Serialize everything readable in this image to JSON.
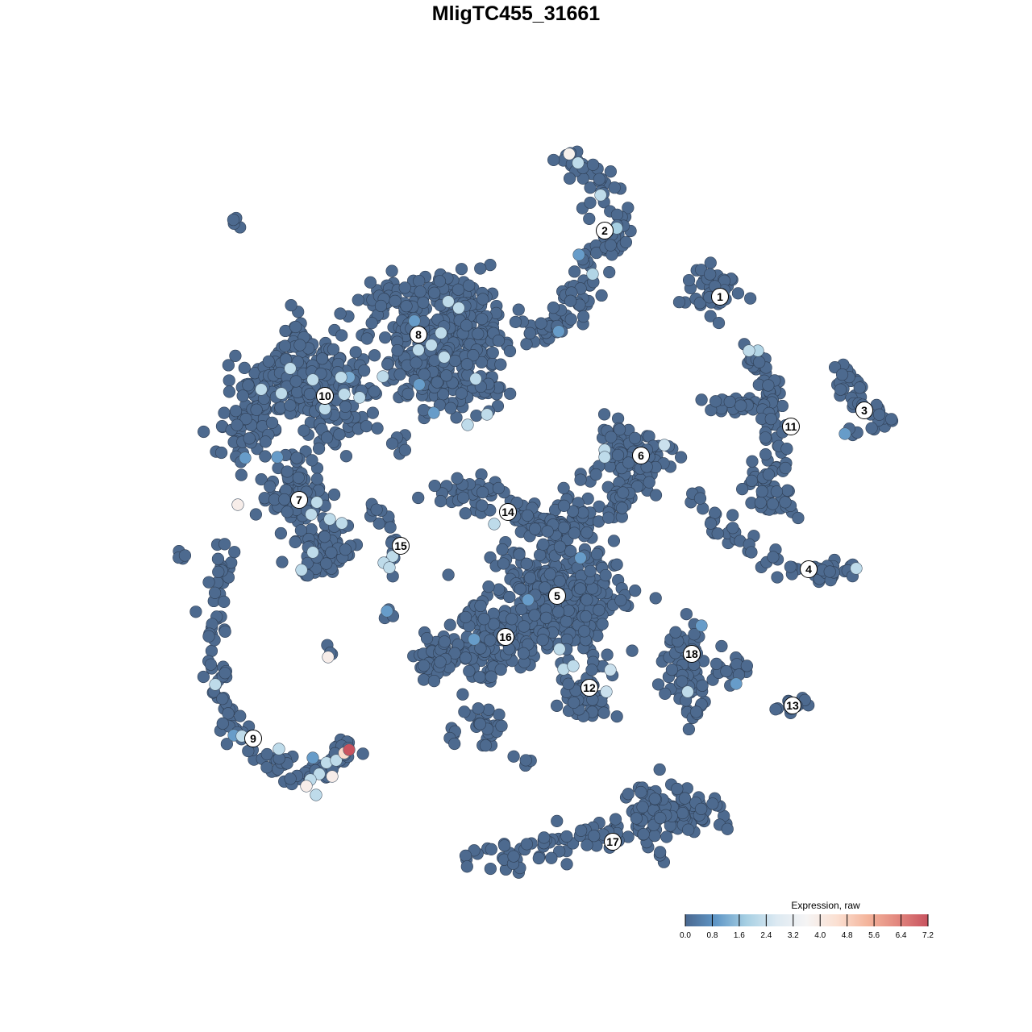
{
  "chart_data": {
    "type": "scatter",
    "title": "MligTC455_31661",
    "xlabel": "",
    "ylabel": "",
    "grid": false,
    "axes_visible": false,
    "base_color": "#4d6a8f",
    "legend": {
      "title": "Expression, raw",
      "placement": "bottom-right",
      "range": [
        0,
        7.2
      ],
      "ticks": [
        "0.0",
        "0.8",
        "1.6",
        "2.4",
        "3.2",
        "4.0",
        "4.8",
        "5.6",
        "6.4",
        "7.2"
      ],
      "colors": [
        "#4a6890",
        "#5f96c6",
        "#a6cfe3",
        "#dce9f2",
        "#f5f4f4",
        "#fbe0d2",
        "#f4b59c",
        "#e2877e",
        "#c8535f"
      ]
    },
    "clusters": [
      {
        "label": "1",
        "label_pos": [
          25.3,
          27.2
        ],
        "segments": [
          {
            "path": [
              [
                24.5,
                28
              ]
            ],
            "spread": 2.3,
            "n": 45
          }
        ]
      },
      {
        "label": "2",
        "label_pos": [
          11,
          35.4
        ],
        "segments": [
          {
            "path": [
              [
                5,
                44
              ],
              [
                10,
                42
              ],
              [
                12.5,
                38
              ],
              [
                12,
                34
              ],
              [
                9.5,
                30
              ],
              [
                7,
                26
              ],
              [
                5,
                23
              ],
              [
                2,
                22.5
              ]
            ],
            "spread": 1.7,
            "n": 120
          }
        ]
      },
      {
        "label": "3",
        "label_pos": [
          43.2,
          13.1
        ],
        "segments": [
          {
            "path": [
              [
                39,
                19
              ],
              [
                41,
                17
              ],
              [
                42.5,
                14
              ],
              [
                46,
                12.2
              ],
              [
                41,
                11
              ]
            ],
            "spread": 1.0,
            "n": 40
          }
        ]
      },
      {
        "label": "4",
        "label_pos": [
          36.3,
          -6.6
        ],
        "segments": [
          {
            "path": [
              [
                22,
                3
              ],
              [
                25,
                -1
              ],
              [
                29,
                -4.5
              ],
              [
                36,
                -7
              ],
              [
                41.5,
                -6.5
              ]
            ],
            "spread": 1.0,
            "n": 60
          }
        ]
      },
      {
        "label": "5",
        "label_pos": [
          5.1,
          -9.9
        ],
        "segments": [
          {
            "path": [
              [
                5,
                -10
              ]
            ],
            "spread": 5.5,
            "n": 380
          },
          {
            "path": [
              [
                5,
                -3
              ],
              [
                9,
                1
              ]
            ],
            "spread": 2,
            "n": 40
          }
        ]
      },
      {
        "label": "6",
        "label_pos": [
          15.5,
          7.5
        ],
        "segments": [
          {
            "path": [
              [
                14,
                7
              ]
            ],
            "spread": 3.2,
            "n": 110
          },
          {
            "path": [
              [
                14,
                3
              ],
              [
                12,
                0
              ]
            ],
            "spread": 1.3,
            "n": 25
          }
        ]
      },
      {
        "label": "7",
        "label_pos": [
          -26.9,
          2
        ],
        "segments": [
          {
            "path": [
              [
                -27,
                3
              ]
            ],
            "spread": 2.8,
            "n": 90
          },
          {
            "path": [
              [
                -24,
                -4
              ]
            ],
            "spread": 2.3,
            "n": 70
          }
        ]
      },
      {
        "label": "8",
        "label_pos": [
          -12.1,
          22.5
        ],
        "segments": [
          {
            "path": [
              [
                -19,
                26
              ],
              [
                -12,
                27.5
              ],
              [
                -5,
                26
              ],
              [
                -4,
                21
              ],
              [
                -5,
                14
              ]
            ],
            "spread": 2.6,
            "n": 220
          },
          {
            "path": [
              [
                -11,
                20
              ]
            ],
            "spread": 4,
            "n": 200
          }
        ]
      },
      {
        "label": "9",
        "label_pos": [
          -32.6,
          -27.6
        ],
        "segments": [
          {
            "path": [
              [
                -36.5,
                -4
              ],
              [
                -37,
                -12
              ],
              [
                -37,
                -20
              ],
              [
                -35.5,
                -25.5
              ],
              [
                -31,
                -30
              ],
              [
                -26,
                -32.5
              ],
              [
                -23,
                -31
              ],
              [
                -21,
                -28.5
              ]
            ],
            "spread": 1.1,
            "n": 130
          }
        ]
      },
      {
        "label": "10",
        "label_pos": [
          -23.7,
          14.9
        ],
        "segments": [
          {
            "path": [
              [
                -34,
                8
              ],
              [
                -32,
                16
              ],
              [
                -26,
                22
              ]
            ],
            "spread": 2.6,
            "n": 150
          },
          {
            "path": [
              [
                -24,
                15
              ]
            ],
            "spread": 4,
            "n": 180
          }
        ]
      },
      {
        "label": "11",
        "label_pos": [
          34.1,
          11.1
        ],
        "segments": [
          {
            "path": [
              [
                29,
                20
              ],
              [
                31,
                16
              ],
              [
                32,
                11
              ],
              [
                32,
                6
              ],
              [
                30,
                3
              ],
              [
                34.5,
                1
              ]
            ],
            "spread": 1.4,
            "n": 110
          },
          {
            "path": [
              [
                24,
                14
              ],
              [
                31,
                13
              ]
            ],
            "spread": 1.1,
            "n": 30
          }
        ]
      },
      {
        "label": "12",
        "label_pos": [
          9.1,
          -21.3
        ],
        "segments": [
          {
            "path": [
              [
                8,
                -22
              ]
            ],
            "spread": 2.3,
            "n": 55
          }
        ]
      },
      {
        "label": "13",
        "label_pos": [
          34.3,
          -23.5
        ],
        "segments": [
          {
            "path": [
              [
                32,
                -23.8
              ],
              [
                37,
                -22.2
              ]
            ],
            "spread": 0.7,
            "n": 12
          }
        ]
      },
      {
        "label": "14",
        "label_pos": [
          -1,
          0.5
        ],
        "segments": [
          {
            "path": [
              [
                -11,
                2.8
              ],
              [
                -4,
                3
              ],
              [
                1,
                0
              ],
              [
                5,
                -2
              ]
            ],
            "spread": 1.5,
            "n": 80
          }
        ]
      },
      {
        "label": "15",
        "label_pos": [
          -14.3,
          -3.7
        ],
        "segments": [
          {
            "path": [
              [
                -18,
                1.5
              ],
              [
                -15,
                -2
              ],
              [
                -16,
                -6.5
              ]
            ],
            "spread": 0.8,
            "n": 18
          }
        ]
      },
      {
        "label": "16",
        "label_pos": [
          -1.3,
          -15
        ],
        "segments": [
          {
            "path": [
              [
                -3,
                -15
              ]
            ],
            "spread": 3.5,
            "n": 140
          },
          {
            "path": [
              [
                -10,
                -17.5
              ]
            ],
            "spread": 2,
            "n": 50
          },
          {
            "path": [
              [
                -5,
                -25
              ],
              [
                -2,
                -28
              ]
            ],
            "spread": 1.5,
            "n": 25
          }
        ]
      },
      {
        "label": "17",
        "label_pos": [
          12,
          -40.4
        ],
        "segments": [
          {
            "path": [
              [
                -6,
                -42.5
              ],
              [
                1,
                -42
              ],
              [
                8,
                -40.5
              ],
              [
                14,
                -38
              ],
              [
                21,
                -36
              ],
              [
                25.5,
                -37.2
              ]
            ],
            "spread": 1.4,
            "n": 110
          },
          {
            "path": [
              [
                18,
                -37
              ]
            ],
            "spread": 3,
            "n": 80
          }
        ]
      },
      {
        "label": "18",
        "label_pos": [
          21.8,
          -17.1
        ],
        "segments": [
          {
            "path": [
              [
                21,
                -13
              ],
              [
                20,
                -19
              ],
              [
                22,
                -24
              ]
            ],
            "spread": 1.8,
            "n": 70
          },
          {
            "path": [
              [
                26.5,
                -19
              ]
            ],
            "spread": 1.5,
            "n": 20
          }
        ]
      },
      {
        "label": "",
        "label_pos": null,
        "segments": [
          {
            "path": [
              [
                -34.8,
                36.5
              ]
            ],
            "spread": 0.5,
            "n": 4
          },
          {
            "path": [
              [
                -42,
                -5
              ]
            ],
            "spread": 0.5,
            "n": 4
          },
          {
            "path": [
              [
                -23,
                -16.5
              ]
            ],
            "spread": 0.5,
            "n": 3
          },
          {
            "path": [
              [
                1,
                -31
              ]
            ],
            "spread": 0.6,
            "n": 4
          },
          {
            "path": [
              [
                -8,
                -27
              ]
            ],
            "spread": 0.8,
            "n": 5
          },
          {
            "path": [
              [
                -15,
                9
              ]
            ],
            "spread": 1,
            "n": 6
          },
          {
            "path": [
              [
                -16,
                -12
              ]
            ],
            "spread": 0.8,
            "n": 4
          }
        ]
      }
    ],
    "expressing_cells": [
      [
        6.6,
        44.9,
        3.8
      ],
      [
        7.7,
        43.8,
        2.2
      ],
      [
        10.5,
        39.8,
        2.2
      ],
      [
        12.5,
        35.7,
        1.8
      ],
      [
        7.8,
        32.4,
        1.0
      ],
      [
        9.5,
        30,
        2.0
      ],
      [
        5.3,
        22.9,
        1.0
      ],
      [
        28.9,
        20.5,
        2.2
      ],
      [
        30,
        20.5,
        2.0
      ],
      [
        40.8,
        10.2,
        1.0
      ],
      [
        11,
        8.2,
        2.2
      ],
      [
        11,
        7.3,
        2.2
      ],
      [
        18.4,
        8.8,
        2.4
      ],
      [
        42.2,
        -6.5,
        2.2
      ],
      [
        8,
        -5.2,
        1.0
      ],
      [
        1.5,
        -10.4,
        1.0
      ],
      [
        5.4,
        -16.5,
        2.2
      ],
      [
        5.9,
        -19,
        2.2
      ],
      [
        7.1,
        -18.6,
        2.2
      ],
      [
        11.7,
        -19.1,
        2.4
      ],
      [
        11.2,
        -21.8,
        2.4
      ],
      [
        23,
        -13.6,
        1.0
      ],
      [
        27.3,
        -20.8,
        1.0
      ],
      [
        21.3,
        -21.8,
        2.2
      ],
      [
        -5.2,
        -15.3,
        1.0
      ],
      [
        -2.7,
        -1,
        2.2
      ],
      [
        -15.3,
        -5,
        2.2
      ],
      [
        -16.4,
        -5.8,
        2.2
      ],
      [
        -15.7,
        -6.4,
        2.2
      ],
      [
        -16,
        -11.8,
        1.0
      ],
      [
        -8.4,
        26.6,
        2.2
      ],
      [
        -7.1,
        25.8,
        2.2
      ],
      [
        -12.6,
        24.2,
        1.0
      ],
      [
        -9.3,
        22.7,
        2.2
      ],
      [
        -10.5,
        21.2,
        2.2
      ],
      [
        -12.1,
        20.6,
        2.2
      ],
      [
        -8.9,
        19.7,
        2.2
      ],
      [
        -5,
        17,
        2.2
      ],
      [
        -12,
        16.3,
        1.0
      ],
      [
        -10.2,
        12.8,
        1.0
      ],
      [
        -6,
        11.3,
        2.2
      ],
      [
        -3.6,
        12.6,
        2.2
      ],
      [
        -28,
        18.3,
        2.2
      ],
      [
        -25.2,
        16.9,
        2.2
      ],
      [
        -21.7,
        17.2,
        2.2
      ],
      [
        -20.7,
        17.2,
        1.2
      ],
      [
        -16.5,
        17.3,
        2.2
      ],
      [
        -19.4,
        14.7,
        2.2
      ],
      [
        -21.3,
        15.1,
        2.2
      ],
      [
        -23.7,
        13.3,
        2.2
      ],
      [
        -29.1,
        15.2,
        2.2
      ],
      [
        -31.6,
        15.7,
        2.2
      ],
      [
        -33.6,
        7.2,
        1.0
      ],
      [
        -29.6,
        7.3,
        1.0
      ],
      [
        -34.5,
        1.4,
        3.9
      ],
      [
        -24.7,
        1.7,
        2.2
      ],
      [
        -25.4,
        0.2,
        2.2
      ],
      [
        -23.1,
        -0.4,
        2.2
      ],
      [
        -21.6,
        -0.9,
        2.2
      ],
      [
        -25.2,
        -4.5,
        2.2
      ],
      [
        -26.6,
        -6.7,
        2.2
      ],
      [
        -23.3,
        -17.5,
        3.9
      ],
      [
        -37.3,
        -20.9,
        2.2
      ],
      [
        -35,
        -27.2,
        1.0
      ],
      [
        -34,
        -27.3,
        2.2
      ],
      [
        -29.4,
        -28.9,
        2.2
      ],
      [
        -25.2,
        -30,
        1.0
      ],
      [
        -23.5,
        -30.6,
        2.2
      ],
      [
        -22.3,
        -30.3,
        2.2
      ],
      [
        -21.3,
        -29.4,
        4.6
      ],
      [
        -20.7,
        -29,
        7.2
      ],
      [
        -22.8,
        -32.3,
        3.9
      ],
      [
        -24.4,
        -32,
        2.2
      ],
      [
        -25.5,
        -32.7,
        2.2
      ],
      [
        -26,
        -33.5,
        3.9
      ],
      [
        -24.8,
        -34.6,
        2.2
      ]
    ]
  }
}
